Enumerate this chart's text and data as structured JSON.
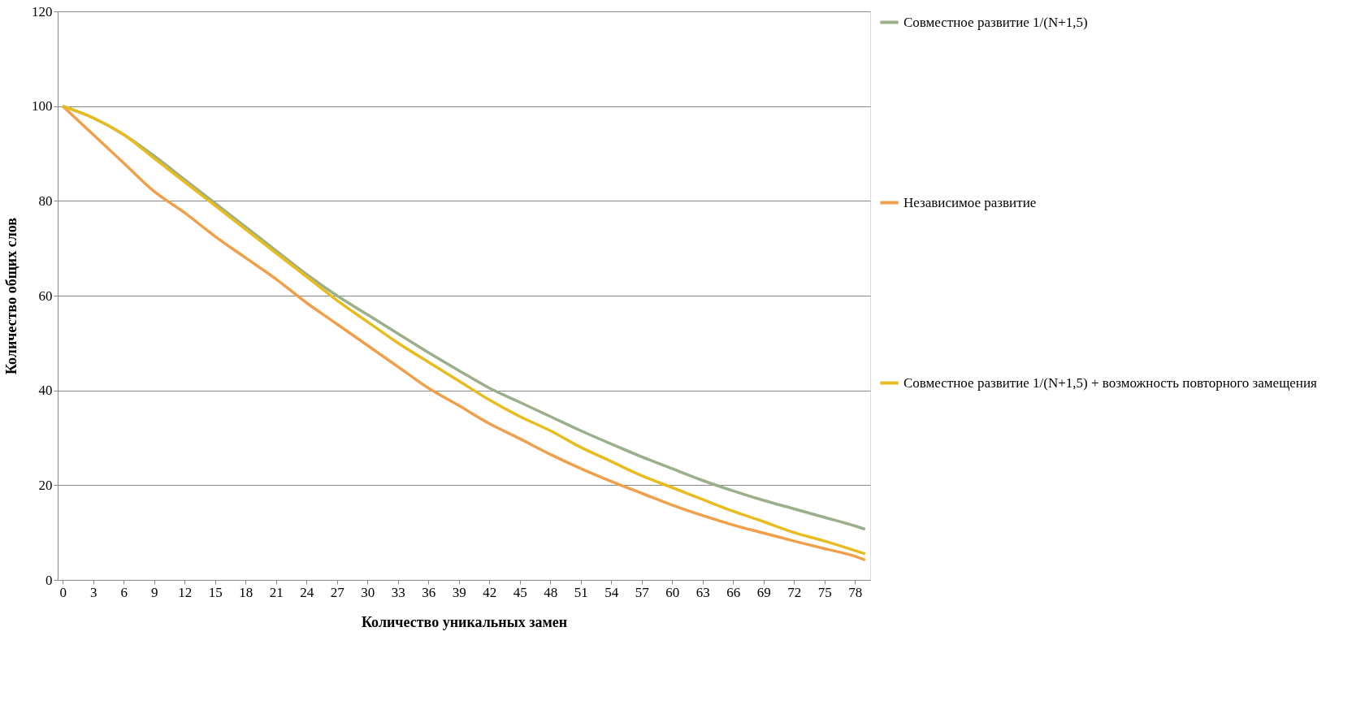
{
  "chart_data": {
    "type": "line",
    "xlabel": "Количество уникальных замен",
    "ylabel": "Количество общих слов",
    "x": [
      0,
      3,
      6,
      9,
      12,
      15,
      18,
      21,
      24,
      27,
      30,
      33,
      36,
      39,
      42,
      45,
      48,
      51,
      54,
      57,
      60,
      63,
      66,
      69,
      72,
      75,
      78,
      79
    ],
    "series": [
      {
        "name": "Совместное развитие 1/(N+1,5)",
        "color": "#9bb08a",
        "values": [
          100,
          97.5,
          94,
          89.5,
          84.5,
          79.5,
          74.5,
          69.5,
          64.5,
          60,
          56,
          52,
          48,
          44.2,
          40.5,
          37.5,
          34.5,
          31.5,
          28.7,
          26,
          23.5,
          21,
          18.8,
          16.8,
          15,
          13.2,
          11.4,
          10.7
        ]
      },
      {
        "name": "Независимое развитие",
        "color": "#f0a04b",
        "values": [
          100,
          94,
          88,
          82,
          77.5,
          72.5,
          68,
          63.5,
          58.5,
          54,
          49.5,
          45,
          40.5,
          36.8,
          33,
          29.8,
          26.5,
          23.5,
          20.8,
          18.3,
          15.8,
          13.6,
          11.6,
          9.9,
          8.2,
          6.6,
          5,
          4.2
        ]
      },
      {
        "name": "Совместное развитие 1/(N+1,5) + возможность повторного замещения",
        "color": "#e8bc1e",
        "values": [
          100,
          97.5,
          94,
          89,
          84,
          79,
          74,
          69,
          64,
          59,
          54.5,
          50,
          46,
          42,
          38,
          34.5,
          31.5,
          28,
          25,
          22,
          19.5,
          17,
          14.5,
          12.3,
          10,
          8.2,
          6.2,
          5.5
        ]
      }
    ],
    "xlim": [
      -0.5,
      79.5
    ],
    "xticks": [
      0,
      3,
      6,
      9,
      12,
      15,
      18,
      21,
      24,
      27,
      30,
      33,
      36,
      39,
      42,
      45,
      48,
      51,
      54,
      57,
      60,
      63,
      66,
      69,
      72,
      75,
      78
    ],
    "ylim": [
      0,
      120
    ],
    "yticks": [
      0,
      20,
      40,
      60,
      80,
      100,
      120
    ],
    "grid": "y",
    "legend": "right",
    "marker": "none",
    "line_style": "solid"
  }
}
